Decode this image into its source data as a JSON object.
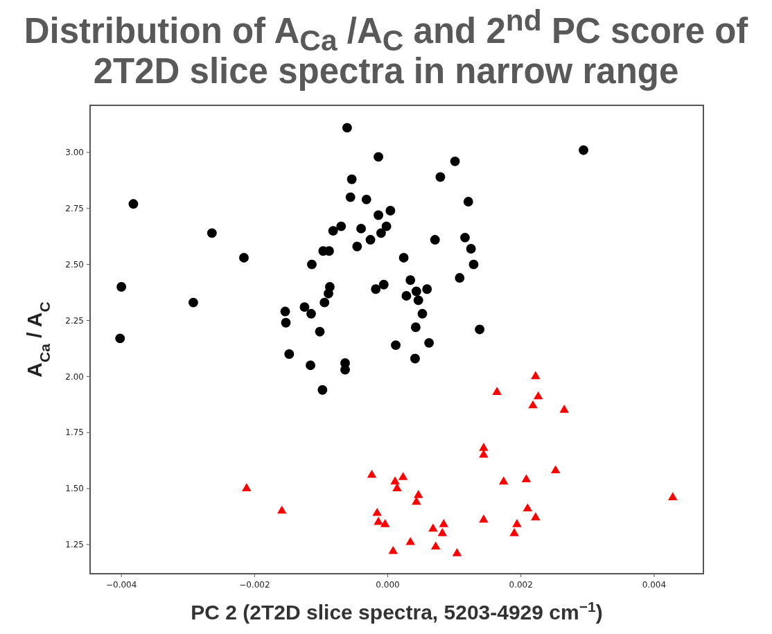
{
  "chart_data": {
    "type": "scatter",
    "title": "Distribution of A$_{Ca}$ /A$_{C}$ and 2$^{nd}$ PC score of 2T2D slice spectra in narrow range",
    "xlabel": "PC 2 (2T2D slice spectra, 5203-4929 cm$^{−1}$)",
    "ylabel": "A$_{Ca}$ / A$_{C}$",
    "xlim": [
      -0.00447,
      0.00474
    ],
    "ylim": [
      1.12,
      3.21
    ],
    "xticks": [
      {
        "value": -0.004,
        "label": "−0.004"
      },
      {
        "value": -0.002,
        "label": "−0.002"
      },
      {
        "value": 0,
        "label": "0.000"
      },
      {
        "value": 0.002,
        "label": "0.002"
      },
      {
        "value": 0.004,
        "label": "0.004"
      }
    ],
    "yticks": [
      {
        "value": 1.25,
        "label": "1.25"
      },
      {
        "value": 1.5,
        "label": "1.50"
      },
      {
        "value": 1.75,
        "label": "1.75"
      },
      {
        "value": 2,
        "label": "2.00"
      },
      {
        "value": 2.25,
        "label": "2.25"
      },
      {
        "value": 2.5,
        "label": "2.50"
      },
      {
        "value": 2.75,
        "label": "2.75"
      },
      {
        "value": 3,
        "label": "3.00"
      }
    ],
    "grid": false,
    "series": [
      {
        "color": "#000000",
        "marker": "circle",
        "x": [
          -0.00061,
          -0.00014,
          -0.00054,
          -0.00056,
          -0.00032,
          -0.00382,
          4e-05,
          -0.00014,
          -0.0007,
          -0.0004,
          -2e-05,
          -0.00082,
          -0.0001,
          -0.00026,
          -0.00264,
          -0.00046,
          -0.00097,
          -0.00088,
          -0.00216,
          0.00024,
          -0.00114,
          -0.004,
          -0.00087,
          -0.00089,
          -6e-05,
          -0.00018,
          -0.00095,
          -0.00292,
          -0.00125,
          -0.00115,
          -0.00154,
          -0.00153,
          -0.00102,
          -0.00402,
          0.00012,
          -0.00148,
          -0.00116,
          -0.00064,
          -0.00064,
          -0.00098,
          0.00294,
          0.00101,
          0.00079,
          0.00121,
          0.00071,
          0.00116,
          0.00125,
          0.00129,
          0.00108,
          0.00034,
          0.00043,
          0.00059,
          0.00028,
          0.00046,
          0.00052,
          0.00042,
          0.00138,
          0.00062,
          0.00041
        ],
        "values": [
          3.11,
          2.98,
          2.88,
          2.8,
          2.79,
          2.77,
          2.74,
          2.72,
          2.67,
          2.66,
          2.67,
          2.65,
          2.64,
          2.61,
          2.64,
          2.58,
          2.56,
          2.56,
          2.53,
          2.53,
          2.5,
          2.4,
          2.4,
          2.37,
          2.41,
          2.39,
          2.33,
          2.33,
          2.31,
          2.28,
          2.29,
          2.24,
          2.2,
          2.17,
          2.14,
          2.1,
          2.05,
          2.06,
          2.03,
          1.94,
          3.01,
          2.96,
          2.89,
          2.78,
          2.61,
          2.62,
          2.57,
          2.5,
          2.44,
          2.43,
          2.38,
          2.39,
          2.36,
          2.34,
          2.28,
          2.22,
          2.21,
          2.15,
          2.08
        ]
      },
      {
        "color": "#ff0000",
        "marker": "triangle",
        "x": [
          0.00222,
          0.00164,
          0.00226,
          0.00218,
          0.00265,
          0.00144,
          0.00144,
          0.00252,
          -0.00024,
          0.00023,
          0.00011,
          0.00174,
          0.00208,
          0.00014,
          -0.00212,
          0.00046,
          0.00043,
          0.00428,
          -0.00159,
          0.0021,
          -0.00016,
          0.00222,
          0.00144,
          -0.00014,
          -4e-05,
          0.00084,
          0.00068,
          0.00194,
          0.00082,
          0.0019,
          0.00034,
          0.00072,
          8e-05,
          0.00104
        ],
        "values": [
          2.0,
          1.93,
          1.91,
          1.87,
          1.85,
          1.68,
          1.65,
          1.58,
          1.56,
          1.55,
          1.53,
          1.53,
          1.54,
          1.5,
          1.5,
          1.47,
          1.44,
          1.46,
          1.4,
          1.41,
          1.39,
          1.37,
          1.36,
          1.35,
          1.34,
          1.34,
          1.32,
          1.34,
          1.3,
          1.3,
          1.26,
          1.24,
          1.22,
          1.21
        ]
      }
    ]
  }
}
